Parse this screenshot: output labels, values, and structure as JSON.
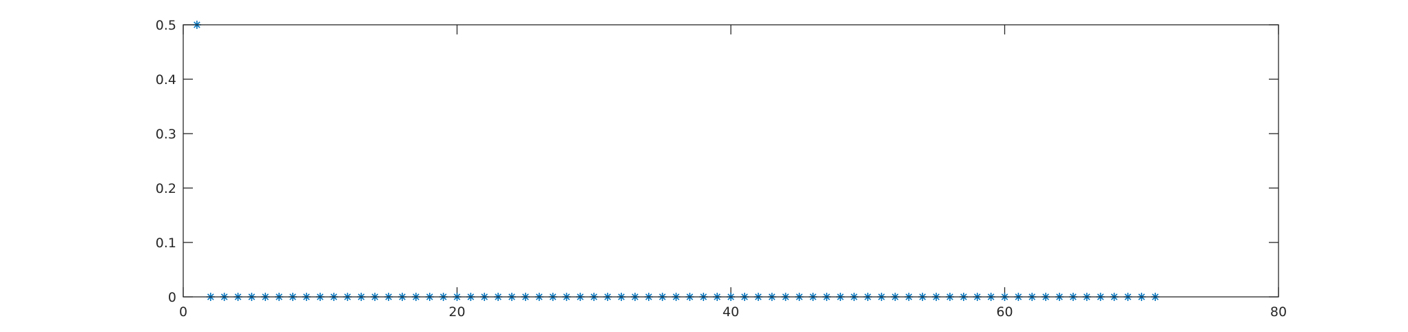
{
  "chart_data": {
    "type": "scatter",
    "title": "",
    "xlabel": "",
    "ylabel": "",
    "xlim": [
      0,
      80
    ],
    "ylim": [
      0,
      0.5
    ],
    "xticks": [
      0,
      20,
      40,
      60,
      80
    ],
    "yticks": [
      0,
      0.1,
      0.2,
      0.3,
      0.4,
      0.5
    ],
    "xtick_labels": [
      "0",
      "20",
      "40",
      "60",
      "80"
    ],
    "ytick_labels": [
      "0",
      "0.1",
      "0.2",
      "0.3",
      "0.4",
      "0.5"
    ],
    "grid": false,
    "box": true,
    "marker": "asterisk",
    "color": "#0072bd",
    "series": [
      {
        "x": [
          1,
          2,
          3,
          4,
          5,
          6,
          7,
          8,
          9,
          10,
          11,
          12,
          13,
          14,
          15,
          16,
          17,
          18,
          19,
          20,
          21,
          22,
          23,
          24,
          25,
          26,
          27,
          28,
          29,
          30,
          31,
          32,
          33,
          34,
          35,
          36,
          37,
          38,
          39,
          40,
          41,
          42,
          43,
          44,
          45,
          46,
          47,
          48,
          49,
          50,
          51,
          52,
          53,
          54,
          55,
          56,
          57,
          58,
          59,
          60,
          61,
          62,
          63,
          64,
          65,
          66,
          67,
          68,
          69,
          70,
          71
        ],
        "y": [
          0.5,
          0,
          0,
          0,
          0,
          0,
          0,
          0,
          0,
          0,
          0,
          0,
          0,
          0,
          0,
          0,
          0,
          0,
          0,
          0,
          0,
          0,
          0,
          0,
          0,
          0,
          0,
          0,
          0,
          0,
          0,
          0,
          0,
          0,
          0,
          0,
          0,
          0,
          0,
          0,
          0,
          0,
          0,
          0,
          0,
          0,
          0,
          0,
          0,
          0,
          0,
          0,
          0,
          0,
          0,
          0,
          0,
          0,
          0,
          0,
          0,
          0,
          0,
          0,
          0,
          0,
          0,
          0,
          0,
          0,
          0
        ]
      }
    ]
  }
}
